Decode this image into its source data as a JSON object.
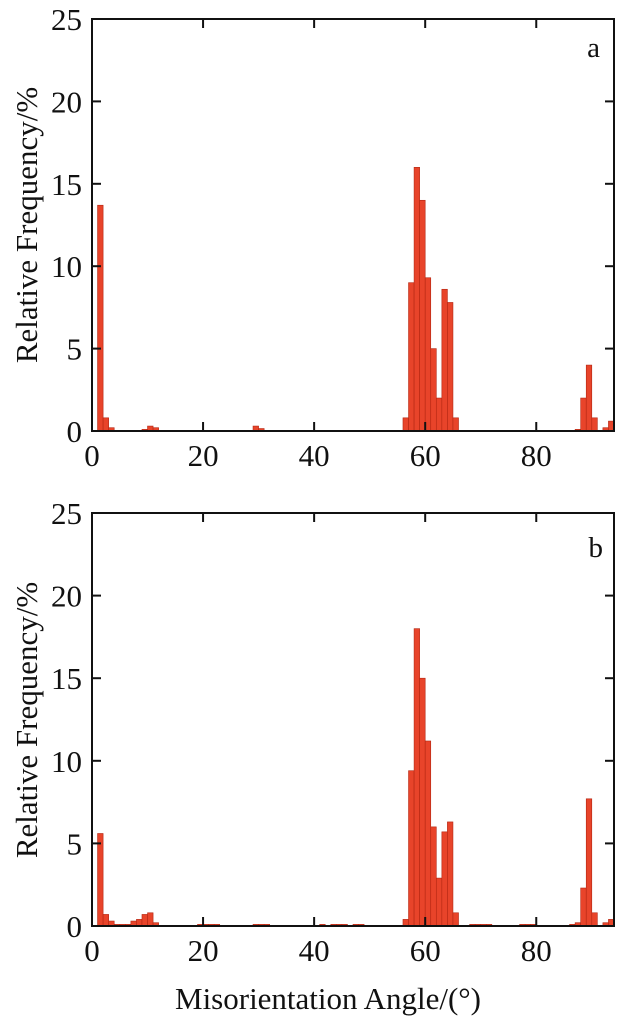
{
  "chart_data": [
    {
      "type": "bar",
      "panel_label": "a",
      "xlabel": "",
      "ylabel": "Relative Frequency/%",
      "xlim": [
        0,
        94
      ],
      "ylim": [
        0,
        25
      ],
      "xticks": [
        0,
        20,
        40,
        60,
        80
      ],
      "yticks": [
        0,
        5,
        10,
        15,
        20,
        25
      ],
      "xtick_labels": [
        "0",
        "20",
        "40",
        "60",
        "80"
      ],
      "ytick_labels": [
        "0",
        "5",
        "10",
        "15",
        "20",
        "25"
      ],
      "bar_width": 1,
      "grid": false,
      "legend": "none",
      "bar_color": "#e8442a",
      "x": [
        1.5,
        2.5,
        3.5,
        9.5,
        10.5,
        11.5,
        29.5,
        30.5,
        56.5,
        57.5,
        58.5,
        59.5,
        60.5,
        61.5,
        62.5,
        63.5,
        64.5,
        65.5,
        87.5,
        88.5,
        89.5,
        90.5,
        92.5,
        93.5
      ],
      "values": [
        13.7,
        0.8,
        0.2,
        0.1,
        0.3,
        0.2,
        0.3,
        0.15,
        0.8,
        9.0,
        16.0,
        14.0,
        9.3,
        5.0,
        2.0,
        8.6,
        7.8,
        0.8,
        0.1,
        2.0,
        4.0,
        0.8,
        0.2,
        0.6
      ]
    },
    {
      "type": "bar",
      "panel_label": "b",
      "xlabel": "Misorientation Angle/(°)",
      "ylabel": "Relative Frequency/%",
      "xlim": [
        0,
        94
      ],
      "ylim": [
        0,
        25
      ],
      "xticks": [
        0,
        20,
        40,
        60,
        80
      ],
      "yticks": [
        0,
        5,
        10,
        15,
        20,
        25
      ],
      "xtick_labels": [
        "0",
        "20",
        "40",
        "60",
        "80"
      ],
      "ytick_labels": [
        "0",
        "5",
        "10",
        "15",
        "20",
        "25"
      ],
      "bar_width": 1,
      "grid": false,
      "legend": "none",
      "bar_color": "#e8442a",
      "x": [
        1.5,
        2.5,
        3.5,
        4.5,
        5.5,
        6.5,
        7.5,
        8.5,
        9.5,
        10.5,
        11.5,
        19.5,
        20.5,
        21.5,
        22.5,
        29.5,
        30.5,
        31.5,
        41.5,
        43.5,
        44.5,
        45.5,
        47.5,
        48.5,
        56.5,
        57.5,
        58.5,
        59.5,
        60.5,
        61.5,
        62.5,
        63.5,
        64.5,
        65.5,
        68.5,
        69.5,
        70.5,
        71.5,
        77.5,
        78.5,
        79.5,
        86.5,
        87.5,
        88.5,
        89.5,
        90.5,
        92.5,
        93.5
      ],
      "values": [
        5.6,
        0.7,
        0.3,
        0.1,
        0.1,
        0.1,
        0.3,
        0.4,
        0.7,
        0.8,
        0.2,
        0.1,
        0.1,
        0.1,
        0.1,
        0.1,
        0.1,
        0.1,
        0.1,
        0.1,
        0.1,
        0.1,
        0.1,
        0.1,
        0.4,
        9.4,
        18.0,
        15.0,
        11.2,
        6.0,
        2.9,
        5.7,
        6.3,
        0.8,
        0.1,
        0.1,
        0.1,
        0.1,
        0.1,
        0.1,
        0.1,
        0.1,
        0.2,
        2.3,
        7.7,
        0.8,
        0.2,
        0.4
      ]
    }
  ]
}
